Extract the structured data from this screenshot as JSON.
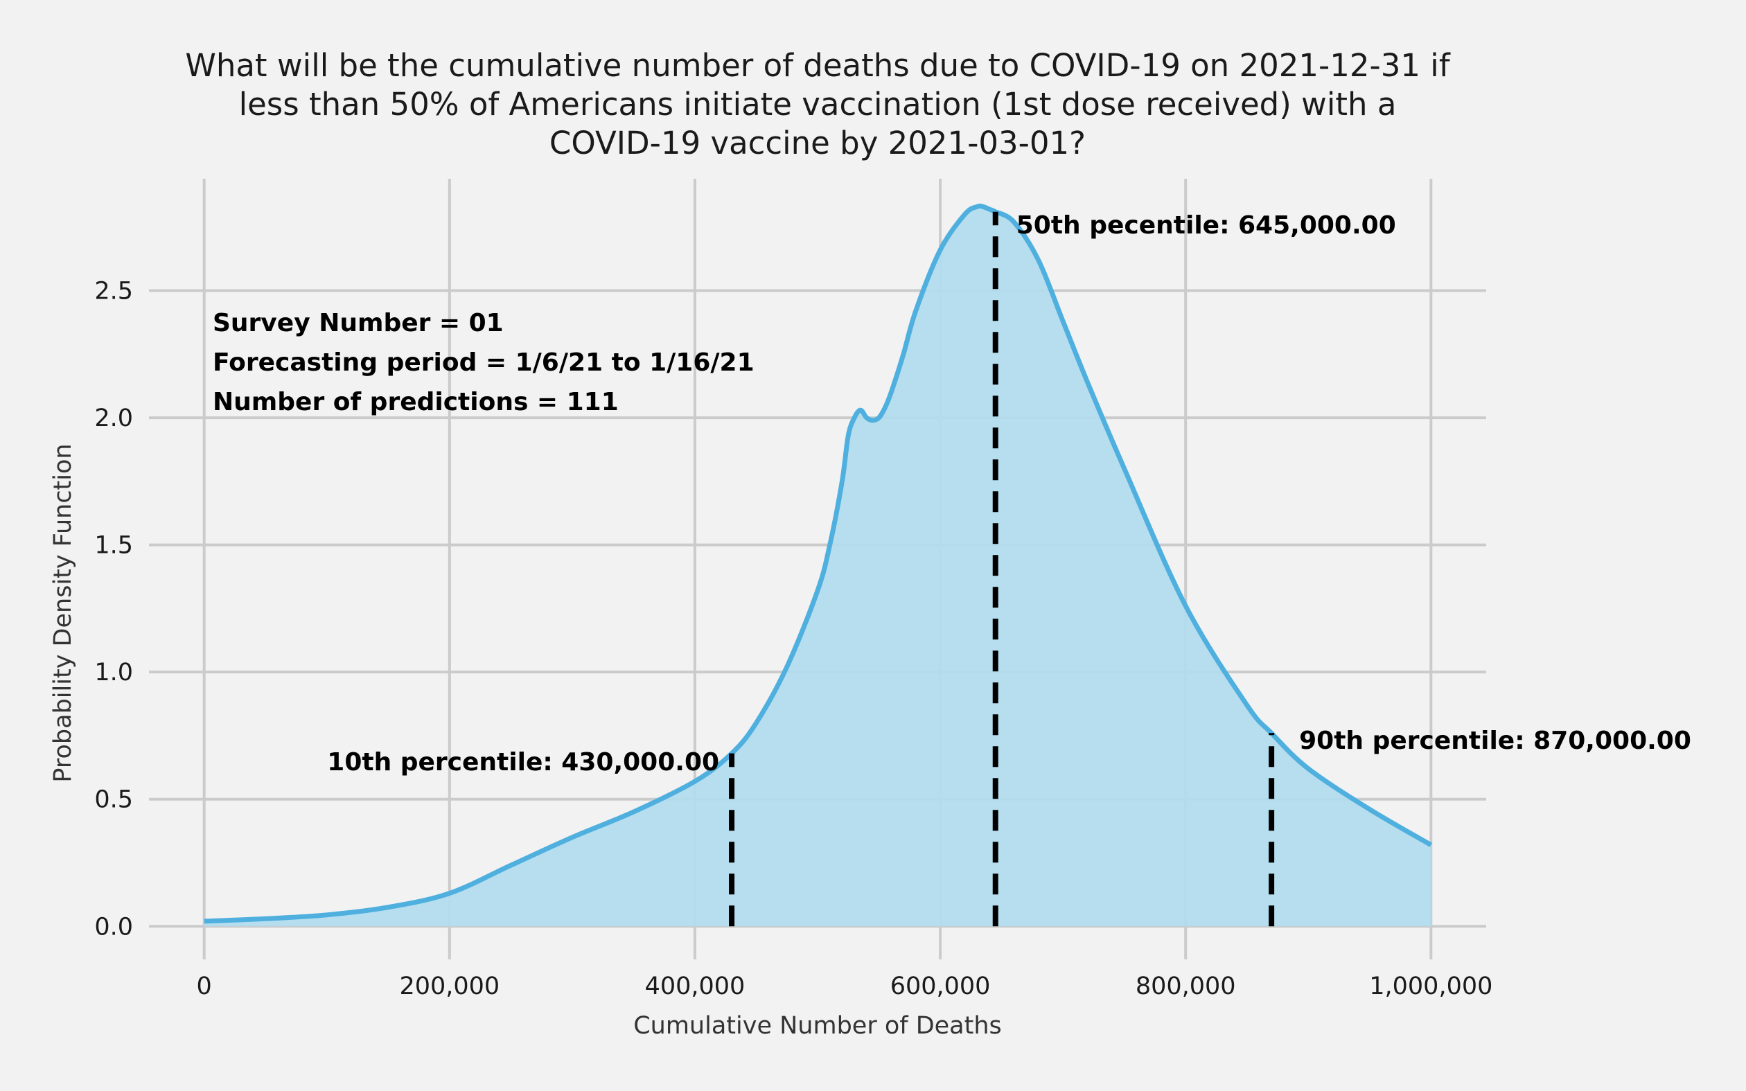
{
  "chart_data": {
    "type": "area",
    "title_lines": [
      "What will be the cumulative number of deaths due to COVID-19 on 2021-12-31 if",
      "less than 50% of Americans initiate vaccination (1st dose received) with a",
      "COVID-19 vaccine by 2021-03-01?"
    ],
    "xlabel": "Cumulative Number of Deaths",
    "ylabel": "Probability Density Function",
    "xlim": [
      -45000,
      1045000
    ],
    "ylim": [
      -0.13,
      2.94
    ],
    "xticks": [
      0,
      200000,
      400000,
      600000,
      800000,
      1000000
    ],
    "xtick_labels": [
      "0",
      "200,000",
      "400,000",
      "600,000",
      "800,000",
      "1,000,000"
    ],
    "yticks": [
      0.0,
      0.5,
      1.0,
      1.5,
      2.0,
      2.5
    ],
    "ytick_labels": [
      "0.0",
      "0.5",
      "1.0",
      "1.5",
      "2.0",
      "2.5"
    ],
    "grid": true,
    "colors": {
      "line": "#4fb0df",
      "fill": "#b2dcee",
      "marker": "#000000",
      "background": "#f2f2f2",
      "grid": "#cbcbcb"
    },
    "series": [
      {
        "x": [
          0,
          50000,
          100000,
          150000,
          200000,
          250000,
          300000,
          350000,
          400000,
          430000,
          450000,
          475000,
          500000,
          510000,
          520000,
          525000,
          530000,
          535000,
          540000,
          545000,
          550000,
          555000,
          560000,
          570000,
          580000,
          600000,
          620000,
          630000,
          635000,
          640000,
          645000,
          660000,
          680000,
          700000,
          720000,
          750000,
          800000,
          850000,
          870000,
          900000,
          950000,
          1000000
        ],
        "y": [
          0.02,
          0.03,
          0.045,
          0.075,
          0.13,
          0.24,
          0.35,
          0.45,
          0.57,
          0.68,
          0.8,
          1.02,
          1.32,
          1.5,
          1.75,
          1.93,
          2.0,
          2.03,
          2.0,
          1.99,
          2.0,
          2.04,
          2.1,
          2.25,
          2.42,
          2.66,
          2.8,
          2.83,
          2.83,
          2.82,
          2.81,
          2.77,
          2.62,
          2.38,
          2.14,
          1.8,
          1.26,
          0.87,
          0.76,
          0.62,
          0.46,
          0.32
        ]
      }
    ],
    "percentiles": [
      {
        "label": "10th percentile: 430,000.00",
        "x": 430000,
        "y": 0.68
      },
      {
        "label": "50th pecentile: 645,000.00",
        "x": 645000,
        "y": 2.81
      },
      {
        "label": "90th percentile: 870,000.00",
        "x": 870000,
        "y": 0.76
      }
    ],
    "info_lines": [
      "Survey Number = 01",
      "Forecasting period = 1/6/21 to 1/16/21",
      "Number of predictions = 111"
    ]
  }
}
